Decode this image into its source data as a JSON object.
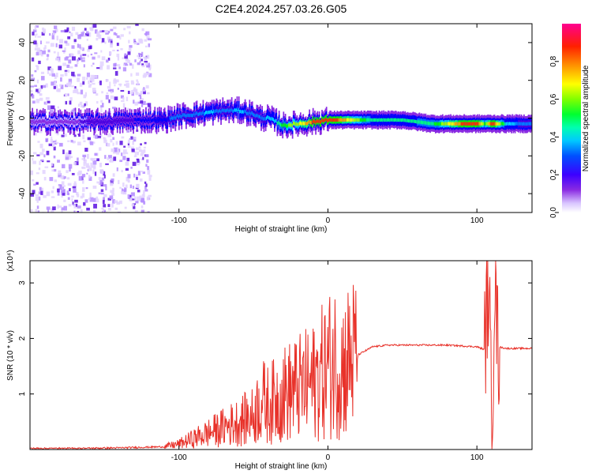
{
  "title": "C2E4.2024.257.03.26.G05",
  "chart_data": [
    {
      "type": "heatmap",
      "xlabel": "Height of straight line (km)",
      "ylabel": "Frequency (Hz)",
      "xlim": [
        -200,
        137
      ],
      "ylim": [
        -50,
        50
      ],
      "xticks": [
        -100,
        0,
        100
      ],
      "yticks": [
        -40,
        -20,
        0,
        20,
        40
      ],
      "colorbar": {
        "label": "Normalized spectral amplitude",
        "range": [
          0,
          1
        ],
        "ticks": [
          "0.0",
          "0.2",
          "0.4",
          "0.6",
          "0.8"
        ],
        "tick_values": [
          0,
          0.2,
          0.4,
          0.6,
          0.8
        ]
      },
      "ridge": {
        "x": [
          -200,
          -150,
          -130,
          -110,
          -100,
          -90,
          -80,
          -70,
          -60,
          -50,
          -45,
          -40,
          -35,
          -30,
          -20,
          -10,
          0,
          10,
          30,
          50,
          70,
          90,
          100,
          105,
          110,
          120,
          137
        ],
        "freq": [
          -2,
          -2,
          -1,
          -1,
          1,
          2,
          3,
          4,
          4,
          2,
          0,
          0,
          -2,
          -4,
          -3,
          -2,
          -1,
          -1,
          -1,
          -1,
          -3,
          -3,
          -3,
          -3,
          -3,
          -3,
          -3
        ],
        "amplitude": [
          0.2,
          0.25,
          0.3,
          0.35,
          0.4,
          0.4,
          0.45,
          0.4,
          0.45,
          0.4,
          0.4,
          0.45,
          0.5,
          0.6,
          0.7,
          0.85,
          0.9,
          0.8,
          0.5,
          0.5,
          0.55,
          0.85,
          0.9,
          0.6,
          0.9,
          0.45,
          0.4
        ]
      },
      "colors": [
        "#ffffff",
        "#e9d8ff",
        "#c7a2ff",
        "#8a2be2",
        "#4b00e0",
        "#0000ff",
        "#0080ff",
        "#00d8ff",
        "#00ff80",
        "#00ff00",
        "#a0ff00",
        "#ffff00",
        "#ffa000",
        "#ff3000",
        "#ff0060",
        "#ff00a0"
      ]
    },
    {
      "type": "line",
      "xlabel": "Height of straight line (km)",
      "ylabel": "SNR (10 * v/v)",
      "y_multiplier": "(x10⁴)",
      "xlim": [
        -200,
        137
      ],
      "ylim": [
        0,
        3.4
      ],
      "xticks": [
        -100,
        0,
        100
      ],
      "yticks": [
        1,
        2,
        3
      ],
      "color": "#e8322a",
      "series": [
        {
          "x": [
            -200,
            -170,
            -140,
            -110,
            -100,
            -90,
            -80,
            -70,
            -60,
            -50,
            -45,
            -40,
            -30,
            -20,
            -10,
            0,
            5,
            10,
            15,
            20,
            30,
            40,
            60,
            80,
            100,
            105,
            108,
            110,
            112,
            114,
            120,
            137
          ],
          "y": [
            0.02,
            0.02,
            0.03,
            0.05,
            0.1,
            0.2,
            0.3,
            0.4,
            0.5,
            0.6,
            0.9,
            0.8,
            1.0,
            1.1,
            1.2,
            1.5,
            1.6,
            1.5,
            1.65,
            1.7,
            1.85,
            1.88,
            1.88,
            1.88,
            1.85,
            1.8,
            3.1,
            0.1,
            3.4,
            1.85,
            1.82,
            1.82
          ]
        }
      ]
    }
  ]
}
